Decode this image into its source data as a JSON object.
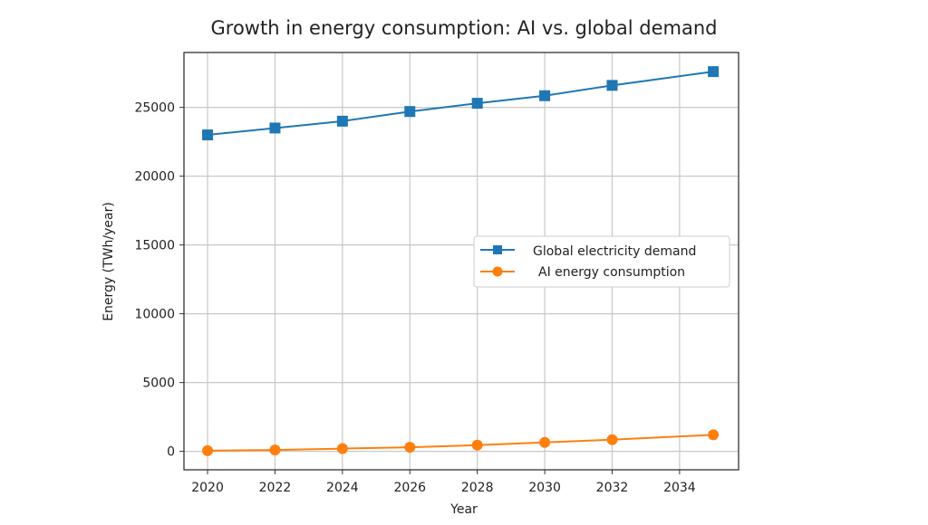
{
  "chart_data": {
    "type": "line",
    "title": "Growth in energy consumption: AI vs. global demand",
    "xlabel": "Year",
    "ylabel": "Energy (TWh/year)",
    "x": [
      2020,
      2022,
      2024,
      2026,
      2028,
      2030,
      2032,
      2035
    ],
    "series": [
      {
        "name": "Global electricity demand",
        "values": [
          23000,
          23500,
          24000,
          24700,
          25300,
          25850,
          26600,
          27600
        ],
        "color": "#1f77b4",
        "marker": "square"
      },
      {
        "name": "AI energy consumption",
        "values": [
          50,
          100,
          200,
          300,
          450,
          650,
          850,
          1200
        ],
        "color": "#ff7f0e",
        "marker": "circle"
      }
    ],
    "xticks": [
      "2020",
      "2022",
      "2024",
      "2026",
      "2028",
      "2030",
      "2032",
      "2034"
    ],
    "yticks": [
      "0",
      "5000",
      "10000",
      "15000",
      "20000",
      "25000"
    ],
    "xlim": [
      2019.3,
      2035.75
    ],
    "ylim": [
      -1340,
      28990
    ],
    "grid": true,
    "legend_position": "center-right"
  }
}
